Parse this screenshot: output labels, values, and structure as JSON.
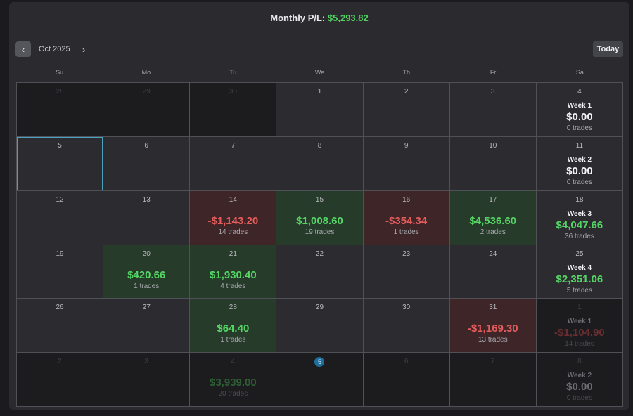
{
  "header": {
    "label": "Monthly P/L:",
    "value": "$5,293.82"
  },
  "nav": {
    "prev_icon": "‹",
    "month": "Oct 2025",
    "next_icon": "›",
    "today_label": "Today"
  },
  "weekdays": [
    "Su",
    "Mo",
    "Tu",
    "We",
    "Th",
    "Fr",
    "Sa"
  ],
  "weeks": [
    [
      {
        "day": "28",
        "state": "other"
      },
      {
        "day": "29",
        "state": "other"
      },
      {
        "day": "30",
        "state": "other"
      },
      {
        "day": "1"
      },
      {
        "day": "2"
      },
      {
        "day": "3"
      },
      {
        "day": "4",
        "week_label": "Week 1",
        "week_amount": "$0.00",
        "week_sign": "zero",
        "week_trades": "0 trades"
      }
    ],
    [
      {
        "day": "5",
        "selected": true
      },
      {
        "day": "6"
      },
      {
        "day": "7"
      },
      {
        "day": "8"
      },
      {
        "day": "9"
      },
      {
        "day": "10"
      },
      {
        "day": "11",
        "week_label": "Week 2",
        "week_amount": "$0.00",
        "week_sign": "zero",
        "week_trades": "0 trades"
      }
    ],
    [
      {
        "day": "12"
      },
      {
        "day": "13"
      },
      {
        "day": "14",
        "state": "loss",
        "amount": "-$1,143.20",
        "sign": "neg",
        "trades": "14 trades"
      },
      {
        "day": "15",
        "state": "win",
        "amount": "$1,008.60",
        "sign": "pos",
        "trades": "19 trades"
      },
      {
        "day": "16",
        "state": "loss",
        "amount": "-$354.34",
        "sign": "neg",
        "trades": "1 trades"
      },
      {
        "day": "17",
        "state": "win",
        "amount": "$4,536.60",
        "sign": "pos",
        "trades": "2 trades"
      },
      {
        "day": "18",
        "week_label": "Week 3",
        "week_amount": "$4,047.66",
        "week_sign": "pos",
        "week_trades": "36 trades"
      }
    ],
    [
      {
        "day": "19"
      },
      {
        "day": "20",
        "state": "win",
        "amount": "$420.66",
        "sign": "pos",
        "trades": "1 trades"
      },
      {
        "day": "21",
        "state": "win",
        "amount": "$1,930.40",
        "sign": "pos",
        "trades": "4 trades"
      },
      {
        "day": "22"
      },
      {
        "day": "23"
      },
      {
        "day": "24"
      },
      {
        "day": "25",
        "week_label": "Week 4",
        "week_amount": "$2,351.06",
        "week_sign": "pos",
        "week_trades": "5 trades"
      }
    ],
    [
      {
        "day": "26"
      },
      {
        "day": "27"
      },
      {
        "day": "28",
        "state": "win",
        "amount": "$64.40",
        "sign": "pos",
        "trades": "1 trades"
      },
      {
        "day": "29"
      },
      {
        "day": "30"
      },
      {
        "day": "31",
        "state": "loss",
        "amount": "-$1,169.30",
        "sign": "neg",
        "trades": "13 trades"
      },
      {
        "day": "1",
        "state": "other",
        "week_label": "Week 1",
        "week_amount": "-$1,104.90",
        "week_sign": "neg",
        "week_trades": "14 trades"
      }
    ],
    [
      {
        "day": "2",
        "state": "other"
      },
      {
        "day": "3",
        "state": "other"
      },
      {
        "day": "4",
        "state": "other",
        "amount": "$3,939.00",
        "sign": "pos",
        "trades": "20 trades"
      },
      {
        "day": "5",
        "state": "other",
        "today": true
      },
      {
        "day": "6",
        "state": "other"
      },
      {
        "day": "7",
        "state": "other"
      },
      {
        "day": "8",
        "state": "other",
        "week_label": "Week 2",
        "week_amount": "$0.00",
        "week_sign": "zero",
        "week_trades": "0 trades"
      }
    ]
  ],
  "colors": {
    "positive": "#55d565",
    "negative": "#e45b5b",
    "win_cell": "#263b29",
    "loss_cell": "#3e2628",
    "selected_border": "#4b9fbf",
    "today_marker": "#1f6d9b"
  }
}
